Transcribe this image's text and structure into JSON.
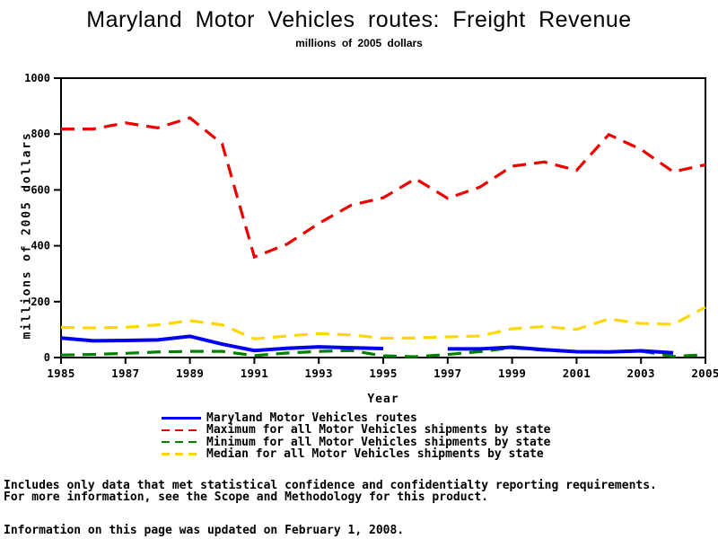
{
  "title": "Maryland Motor Vehicles routes: Freight Revenue",
  "subtitle": "millions of 2005 dollars",
  "chart_data": {
    "type": "line",
    "title": "Maryland Motor Vehicles routes: Freight Revenue",
    "subtitle": "millions of 2005 dollars",
    "xlabel": "Year",
    "ylabel": "millions of 2005 dollars",
    "ylim": [
      0,
      1000
    ],
    "yticks": [
      0,
      200,
      400,
      600,
      800,
      1000
    ],
    "xticks": [
      1985,
      1987,
      1989,
      1991,
      1993,
      1995,
      1997,
      1999,
      2001,
      2003,
      2005
    ],
    "grid": false,
    "legend_position": "bottom",
    "x": [
      1985,
      1986,
      1987,
      1988,
      1989,
      1990,
      1991,
      1992,
      1993,
      1994,
      1995,
      1996,
      1997,
      1998,
      1999,
      2000,
      2001,
      2002,
      2003,
      2004,
      2005
    ],
    "series": [
      {
        "name": "Maryland Motor Vehicles routes",
        "color": "#0000ee",
        "style": "solid",
        "values": [
          70,
          60,
          61,
          63,
          76,
          48,
          25,
          33,
          38,
          35,
          32,
          null,
          31,
          31,
          37,
          28,
          21,
          20,
          24,
          17,
          null
        ]
      },
      {
        "name": "Maximum for all Motor Vehicles shipments by state",
        "color": "#ee0000",
        "style": "dashed",
        "values": [
          818,
          818,
          840,
          822,
          858,
          765,
          360,
          405,
          480,
          545,
          572,
          640,
          570,
          610,
          685,
          700,
          670,
          798,
          745,
          665,
          690
        ]
      },
      {
        "name": "Minimum for all Motor Vehicles shipments by state",
        "color": "#008000",
        "style": "dashed",
        "values": [
          9,
          11,
          15,
          20,
          22,
          22,
          7,
          16,
          22,
          25,
          6,
          3,
          11,
          21,
          35,
          26,
          21,
          20,
          23,
          4,
          10
        ]
      },
      {
        "name": "Median for all Motor Vehicles shipments by state",
        "color": "#ffd700",
        "style": "dashed",
        "values": [
          108,
          106,
          108,
          117,
          132,
          117,
          67,
          77,
          86,
          81,
          69,
          70,
          74,
          77,
          103,
          111,
          101,
          138,
          122,
          119,
          180
        ]
      }
    ]
  },
  "footer": {
    "line1": "Includes only data that met statistical confidence and confidentialty reporting requirements.",
    "line2": "For more information, see the Scope and Methodology for this product.",
    "line3": "Information on this page was updated on February 1, 2008."
  }
}
